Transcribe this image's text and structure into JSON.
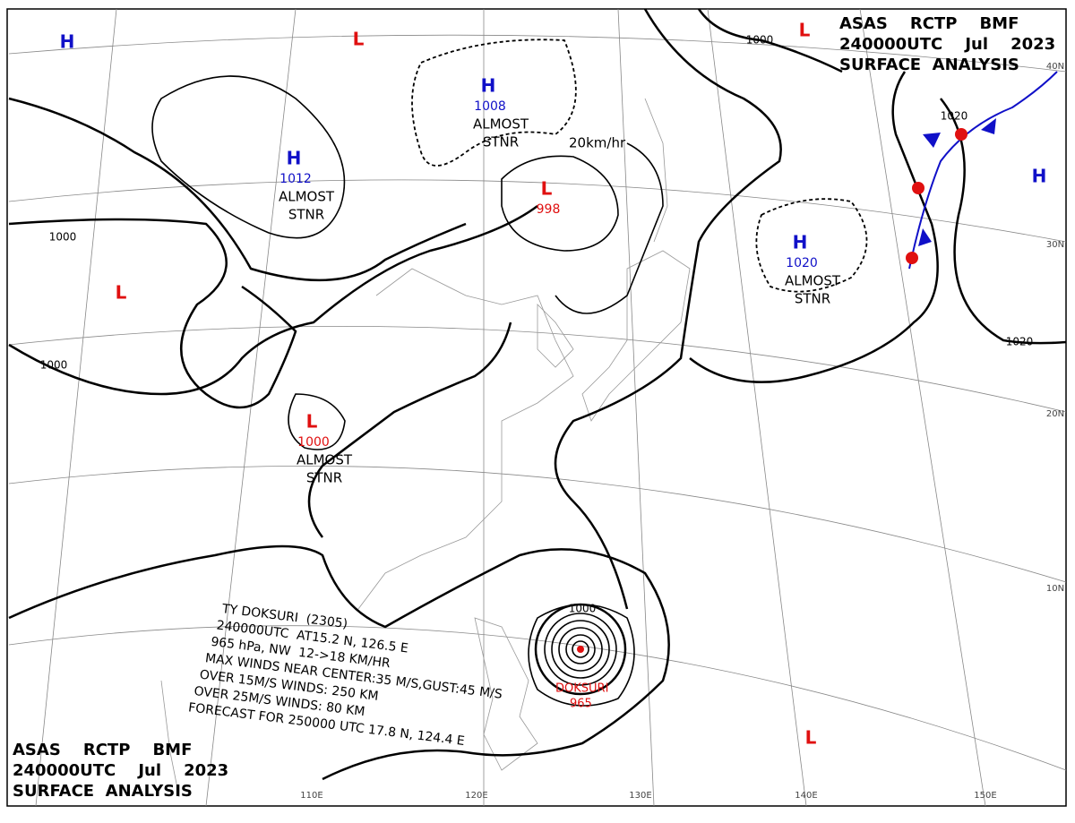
{
  "header": {
    "lines": [
      "ASAS    RCTP    BMF",
      "240000UTC    Jul    2023",
      "SURFACE  ANALYSIS"
    ]
  },
  "colors": {
    "H": "#1010c8",
    "L": "#e01010",
    "text": "#000"
  },
  "systems": [
    {
      "symbol": "H",
      "value": 1008,
      "note": [
        "ALMOST",
        "STNR"
      ]
    },
    {
      "symbol": "H",
      "value": 1012,
      "note": [
        "ALMOST",
        "STNR"
      ]
    },
    {
      "symbol": "L",
      "value": 998
    },
    {
      "symbol": "L",
      "value": 1000,
      "note": [
        "ALMOST",
        "STNR"
      ]
    },
    {
      "symbol": "H",
      "value": 1020,
      "note": [
        "ALMOST",
        "STNR"
      ]
    },
    {
      "symbol": "H"
    },
    {
      "symbol": "L"
    },
    {
      "symbol": "L"
    },
    {
      "symbol": "H"
    },
    {
      "symbol": "L"
    },
    {
      "symbol": "L"
    }
  ],
  "isobar_labels": [
    1000,
    1000,
    1000,
    1020,
    1020,
    1000
  ],
  "speed_label": "20km/hr",
  "typhoon": {
    "name": "DOKSURI",
    "pressure": 965,
    "bulletin": [
      "TY DOKSURI  (2305)",
      "240000UTC  AT15.2 N, 126.5 E",
      "965 hPa, NW  12->18 KM/HR",
      "MAX WINDS NEAR CENTER:35 M/S,GUST:45 M/S",
      "OVER 15M/S WINDS: 250 KM",
      "OVER 25M/S WINDS: 80 KM",
      "FORECAST FOR 250000 UTC 17.8 N, 124.4 E"
    ]
  },
  "latitude_labels": [
    "40N",
    "30N",
    "20N",
    "10N"
  ],
  "longitude_labels": [
    "110E",
    "120E",
    "130E",
    "140E",
    "150E"
  ]
}
